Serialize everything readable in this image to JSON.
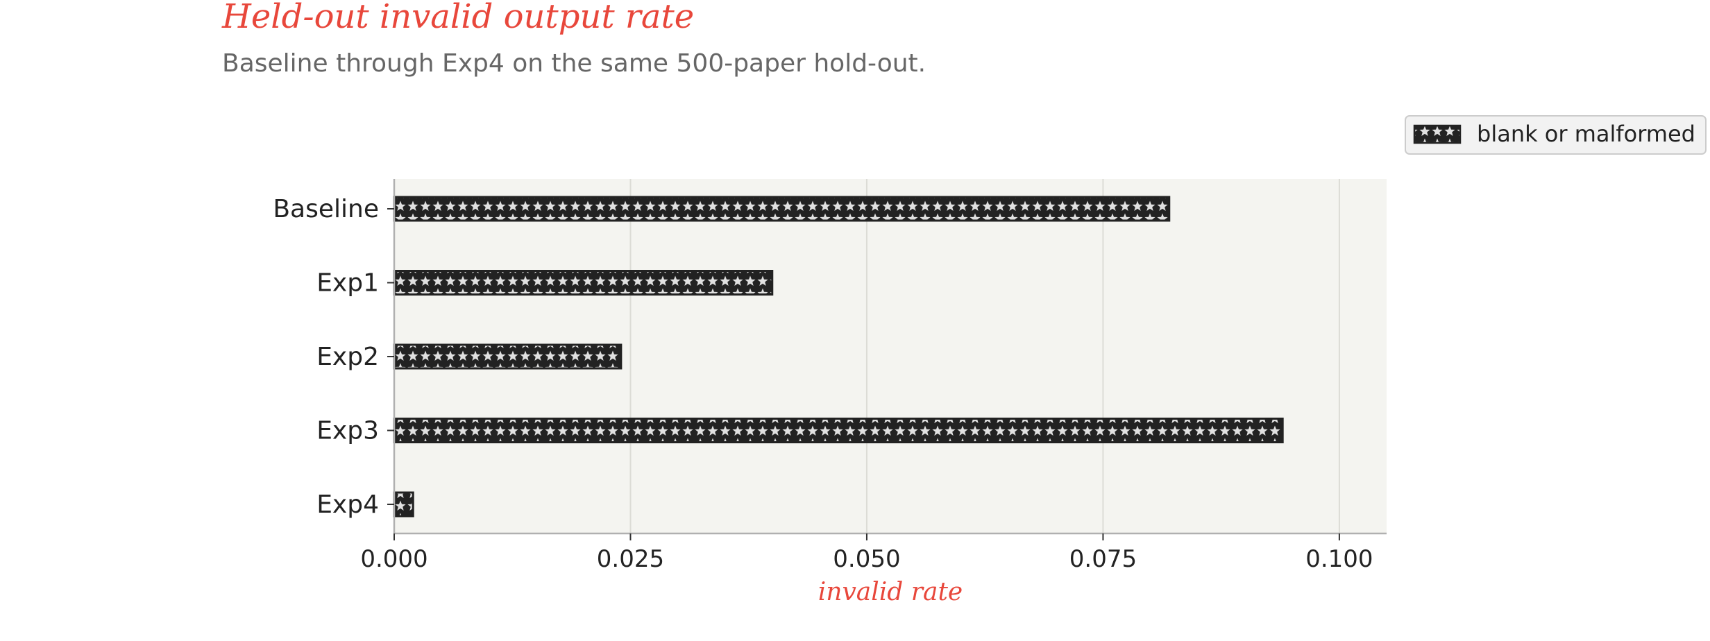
{
  "chart_data": {
    "type": "bar",
    "orientation": "horizontal",
    "title": "Held-out invalid output rate",
    "subtitle": "Baseline through Exp4 on the same 500-paper hold-out.",
    "categories": [
      "Baseline",
      "Exp1",
      "Exp2",
      "Exp3",
      "Exp4"
    ],
    "series": [
      {
        "name": "blank or malformed",
        "values": [
          0.082,
          0.04,
          0.024,
          0.094,
          0.002
        ]
      }
    ],
    "xlabel": "invalid rate",
    "ylabel": "",
    "xlim": [
      0,
      0.105
    ],
    "x_ticks": [
      "0.000",
      "0.025",
      "0.050",
      "0.075",
      "0.100"
    ],
    "x_tick_values": [
      0,
      0.025,
      0.05,
      0.075,
      0.1
    ],
    "grid": "vertical",
    "legend_position": "top-right",
    "colors": {
      "title": "#e8473b",
      "xlabel": "#e8473b",
      "subtitle": "#666666",
      "plot_background": "#f4f4f0",
      "bar_fill": "#222222",
      "bar_pattern": "#e0e0e0",
      "gridline": "#dcdcd6",
      "axis": "#b0b0b0"
    }
  }
}
